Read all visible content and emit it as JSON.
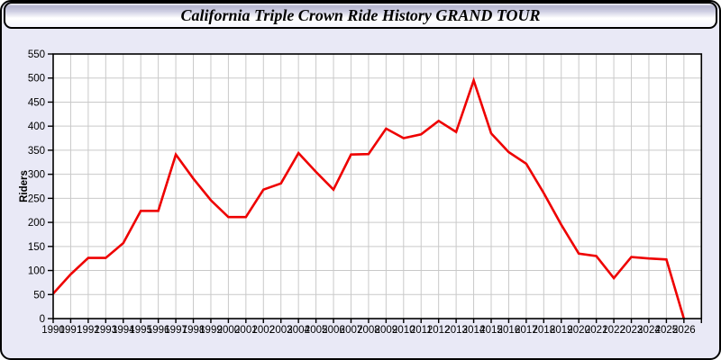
{
  "window": {
    "title": "California Triple Crown Ride History GRAND TOUR"
  },
  "chart_data": {
    "type": "line",
    "title": "California Triple Crown Ride History GRAND TOUR",
    "xlabel": "",
    "ylabel": "Riders",
    "ylim": [
      0,
      550
    ],
    "ytick_step": 50,
    "grid": true,
    "legend": "none",
    "categories": [
      1990,
      1991,
      1992,
      1993,
      1994,
      1995,
      1996,
      1997,
      1998,
      1999,
      2000,
      2001,
      2002,
      2003,
      2004,
      2005,
      2006,
      2007,
      2008,
      2009,
      2010,
      2011,
      2012,
      2013,
      2014,
      2015,
      2016,
      2017,
      2018,
      2019,
      2020,
      2021,
      2022,
      2023,
      2024,
      2025,
      2026
    ],
    "values": [
      52,
      92,
      126,
      126,
      157,
      224,
      224,
      341,
      291,
      246,
      211,
      211,
      268,
      281,
      344,
      305,
      268,
      341,
      342,
      395,
      375,
      383,
      411,
      388,
      495,
      385,
      346,
      322,
      261,
      195,
      135,
      130,
      84,
      128,
      125,
      123,
      0
    ],
    "colors": {
      "line": "#ee0000",
      "plot_background": "#ffffff",
      "window_background": "#e9e9f6",
      "grid": "#c9c9c9",
      "axis": "#000000",
      "tick_text": "#000000"
    }
  }
}
